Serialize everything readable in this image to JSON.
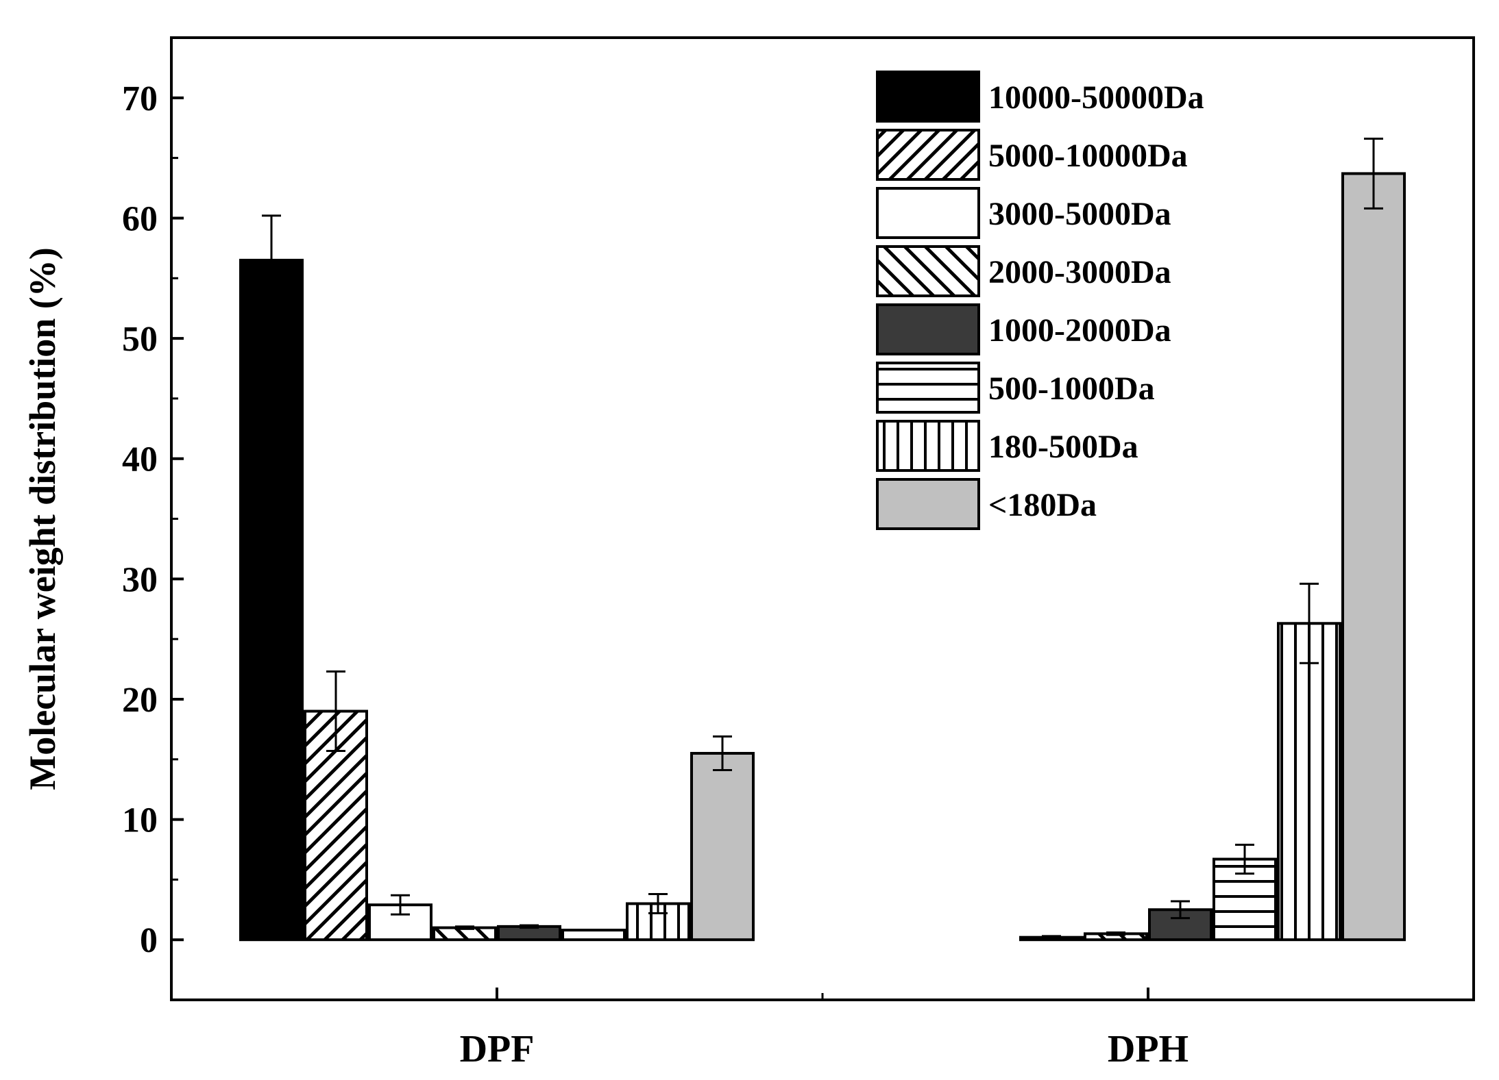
{
  "chart_data": {
    "type": "bar",
    "title": "",
    "xlabel": "",
    "ylabel": "Molecular weight distribution (%)",
    "ylim": [
      -5,
      75
    ],
    "yticks": [
      0,
      10,
      20,
      30,
      40,
      50,
      60,
      70
    ],
    "categories": [
      "DPF",
      "DPH"
    ],
    "legend_position": "top-right",
    "series": [
      {
        "name": "10000-50000Da",
        "pattern": "solid-black",
        "values": [
          56.5,
          0.0
        ],
        "errors": [
          3.7,
          0.0
        ]
      },
      {
        "name": "5000-10000Da",
        "pattern": "diag-up",
        "values": [
          19.0,
          0.0
        ],
        "errors": [
          3.3,
          0.0
        ]
      },
      {
        "name": "3000-5000Da",
        "pattern": "white",
        "values": [
          2.9,
          0.2
        ],
        "errors": [
          0.8,
          0.1
        ]
      },
      {
        "name": "2000-3000Da",
        "pattern": "diag-down",
        "values": [
          1.0,
          0.5
        ],
        "errors": [
          0.1,
          0.1
        ]
      },
      {
        "name": "1000-2000Da",
        "pattern": "solid-dark",
        "values": [
          1.1,
          2.5
        ],
        "errors": [
          0.1,
          0.7
        ]
      },
      {
        "name": "500-1000Da",
        "pattern": "horizontal",
        "values": [
          0.8,
          6.7
        ],
        "errors": [
          0.0,
          1.2
        ]
      },
      {
        "name": "180-500Da",
        "pattern": "vertical",
        "values": [
          3.0,
          26.3
        ],
        "errors": [
          0.8,
          3.3
        ]
      },
      {
        "name": "<180Da",
        "pattern": "solid-gray",
        "values": [
          15.5,
          63.7
        ],
        "errors": [
          1.4,
          2.9
        ]
      }
    ],
    "colors": {
      "black": "#000000",
      "dark": "#3a3a3a",
      "gray": "#c0c0c0",
      "white": "#ffffff"
    }
  }
}
